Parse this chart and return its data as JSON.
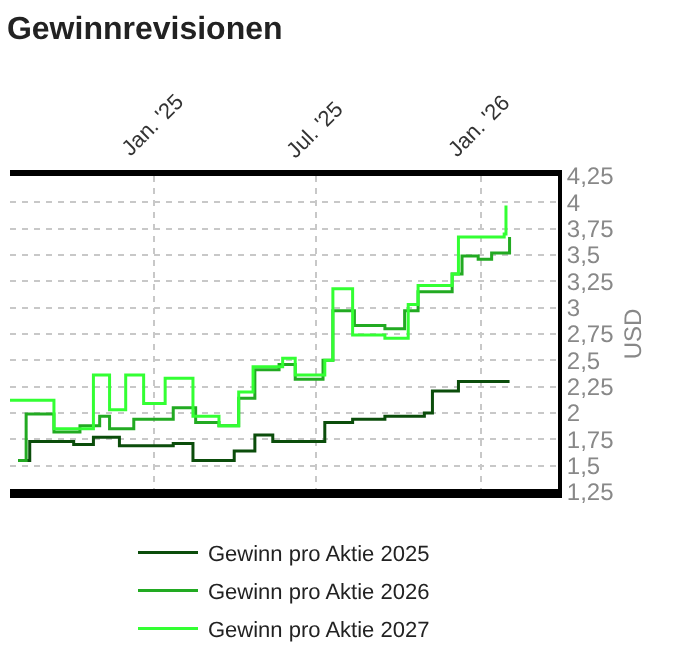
{
  "chart_data": {
    "type": "step",
    "title": "Gewinnrevisionen",
    "ylabel": "USD",
    "xlim": [
      "2024-07-25",
      "2026-03-28"
    ],
    "xticks": [
      {
        "value": "2025-01-01",
        "label": "Jan. '25"
      },
      {
        "value": "2025-07-01",
        "label": "Jul. '25"
      },
      {
        "value": "2026-01-01",
        "label": "Jan. '26"
      }
    ],
    "ylim": [
      1.25,
      4.25
    ],
    "yticks": [
      {
        "value": 1.25,
        "label": "1,25"
      },
      {
        "value": 1.5,
        "label": "1,5"
      },
      {
        "value": 1.75,
        "label": "1,75"
      },
      {
        "value": 2,
        "label": "2"
      },
      {
        "value": 2.25,
        "label": "2,25"
      },
      {
        "value": 2.5,
        "label": "2,5"
      },
      {
        "value": 2.75,
        "label": "2,75"
      },
      {
        "value": 3,
        "label": "3"
      },
      {
        "value": 3.25,
        "label": "3,25"
      },
      {
        "value": 3.5,
        "label": "3,5"
      },
      {
        "value": 3.75,
        "label": "3,75"
      },
      {
        "value": 4,
        "label": "4"
      },
      {
        "value": 4.25,
        "label": "4,25"
      }
    ],
    "grid": true,
    "legend": "bottom",
    "marker": "none",
    "line_style": "solid",
    "series": [
      {
        "name": "Gewinn pro Aktie 2025",
        "color": "#0b4d0b",
        "x": [
          "2024-08-03",
          "2024-08-16",
          "2024-10-04",
          "2024-10-26",
          "2024-11-24",
          "2025-01-23",
          "2025-02-14",
          "2025-03-08",
          "2025-04-01",
          "2025-04-24",
          "2025-05-14",
          "2025-06-19",
          "2025-07-11",
          "2025-08-11",
          "2025-09-16",
          "2025-10-30",
          "2025-11-08",
          "2025-12-07",
          "2026-02-02"
        ],
        "values": [
          1.55,
          1.73,
          1.7,
          1.77,
          1.69,
          1.71,
          1.55,
          1.55,
          1.64,
          1.79,
          1.73,
          1.73,
          1.91,
          1.94,
          1.97,
          2.0,
          2.21,
          2.3,
          2.3
        ]
      },
      {
        "name": "Gewinn pro Aktie 2026",
        "color": "#22aa22",
        "x": [
          "2024-08-03",
          "2024-08-12",
          "2024-09-12",
          "2024-10-11",
          "2024-11-02",
          "2024-11-13",
          "2024-12-10",
          "2025-01-23",
          "2025-02-17",
          "2025-03-15",
          "2025-04-06",
          "2025-04-24",
          "2025-05-21",
          "2025-06-08",
          "2025-07-09",
          "2025-07-20",
          "2025-08-13",
          "2025-09-16",
          "2025-10-08",
          "2025-10-23",
          "2025-11-30",
          "2025-12-11",
          "2025-12-29",
          "2026-01-13",
          "2026-02-02"
        ],
        "values": [
          1.55,
          1.99,
          1.82,
          1.88,
          1.97,
          1.85,
          1.94,
          2.05,
          1.91,
          1.88,
          2.14,
          2.41,
          2.46,
          2.32,
          2.5,
          2.97,
          2.83,
          2.8,
          2.97,
          3.15,
          3.32,
          3.49,
          3.46,
          3.52,
          3.67
        ]
      },
      {
        "name": "Gewinn pro Aktie 2027",
        "color": "#33ff33",
        "x": [
          "2024-07-25",
          "2024-09-12",
          "2024-10-26",
          "2024-11-13",
          "2024-12-01",
          "2024-12-21",
          "2025-01-14",
          "2025-02-14",
          "2025-03-15",
          "2025-04-06",
          "2025-04-22",
          "2025-05-25",
          "2025-06-08",
          "2025-07-11",
          "2025-07-20",
          "2025-08-11",
          "2025-09-16",
          "2025-10-12",
          "2025-10-23",
          "2025-11-30",
          "2025-12-07",
          "2026-01-27",
          "2026-01-29"
        ],
        "values": [
          2.12,
          1.85,
          2.36,
          2.03,
          2.36,
          2.09,
          2.33,
          1.97,
          1.88,
          2.2,
          2.44,
          2.52,
          2.36,
          2.5,
          3.18,
          2.74,
          2.71,
          3.03,
          3.21,
          3.32,
          3.67,
          3.7,
          3.97
        ]
      }
    ]
  }
}
